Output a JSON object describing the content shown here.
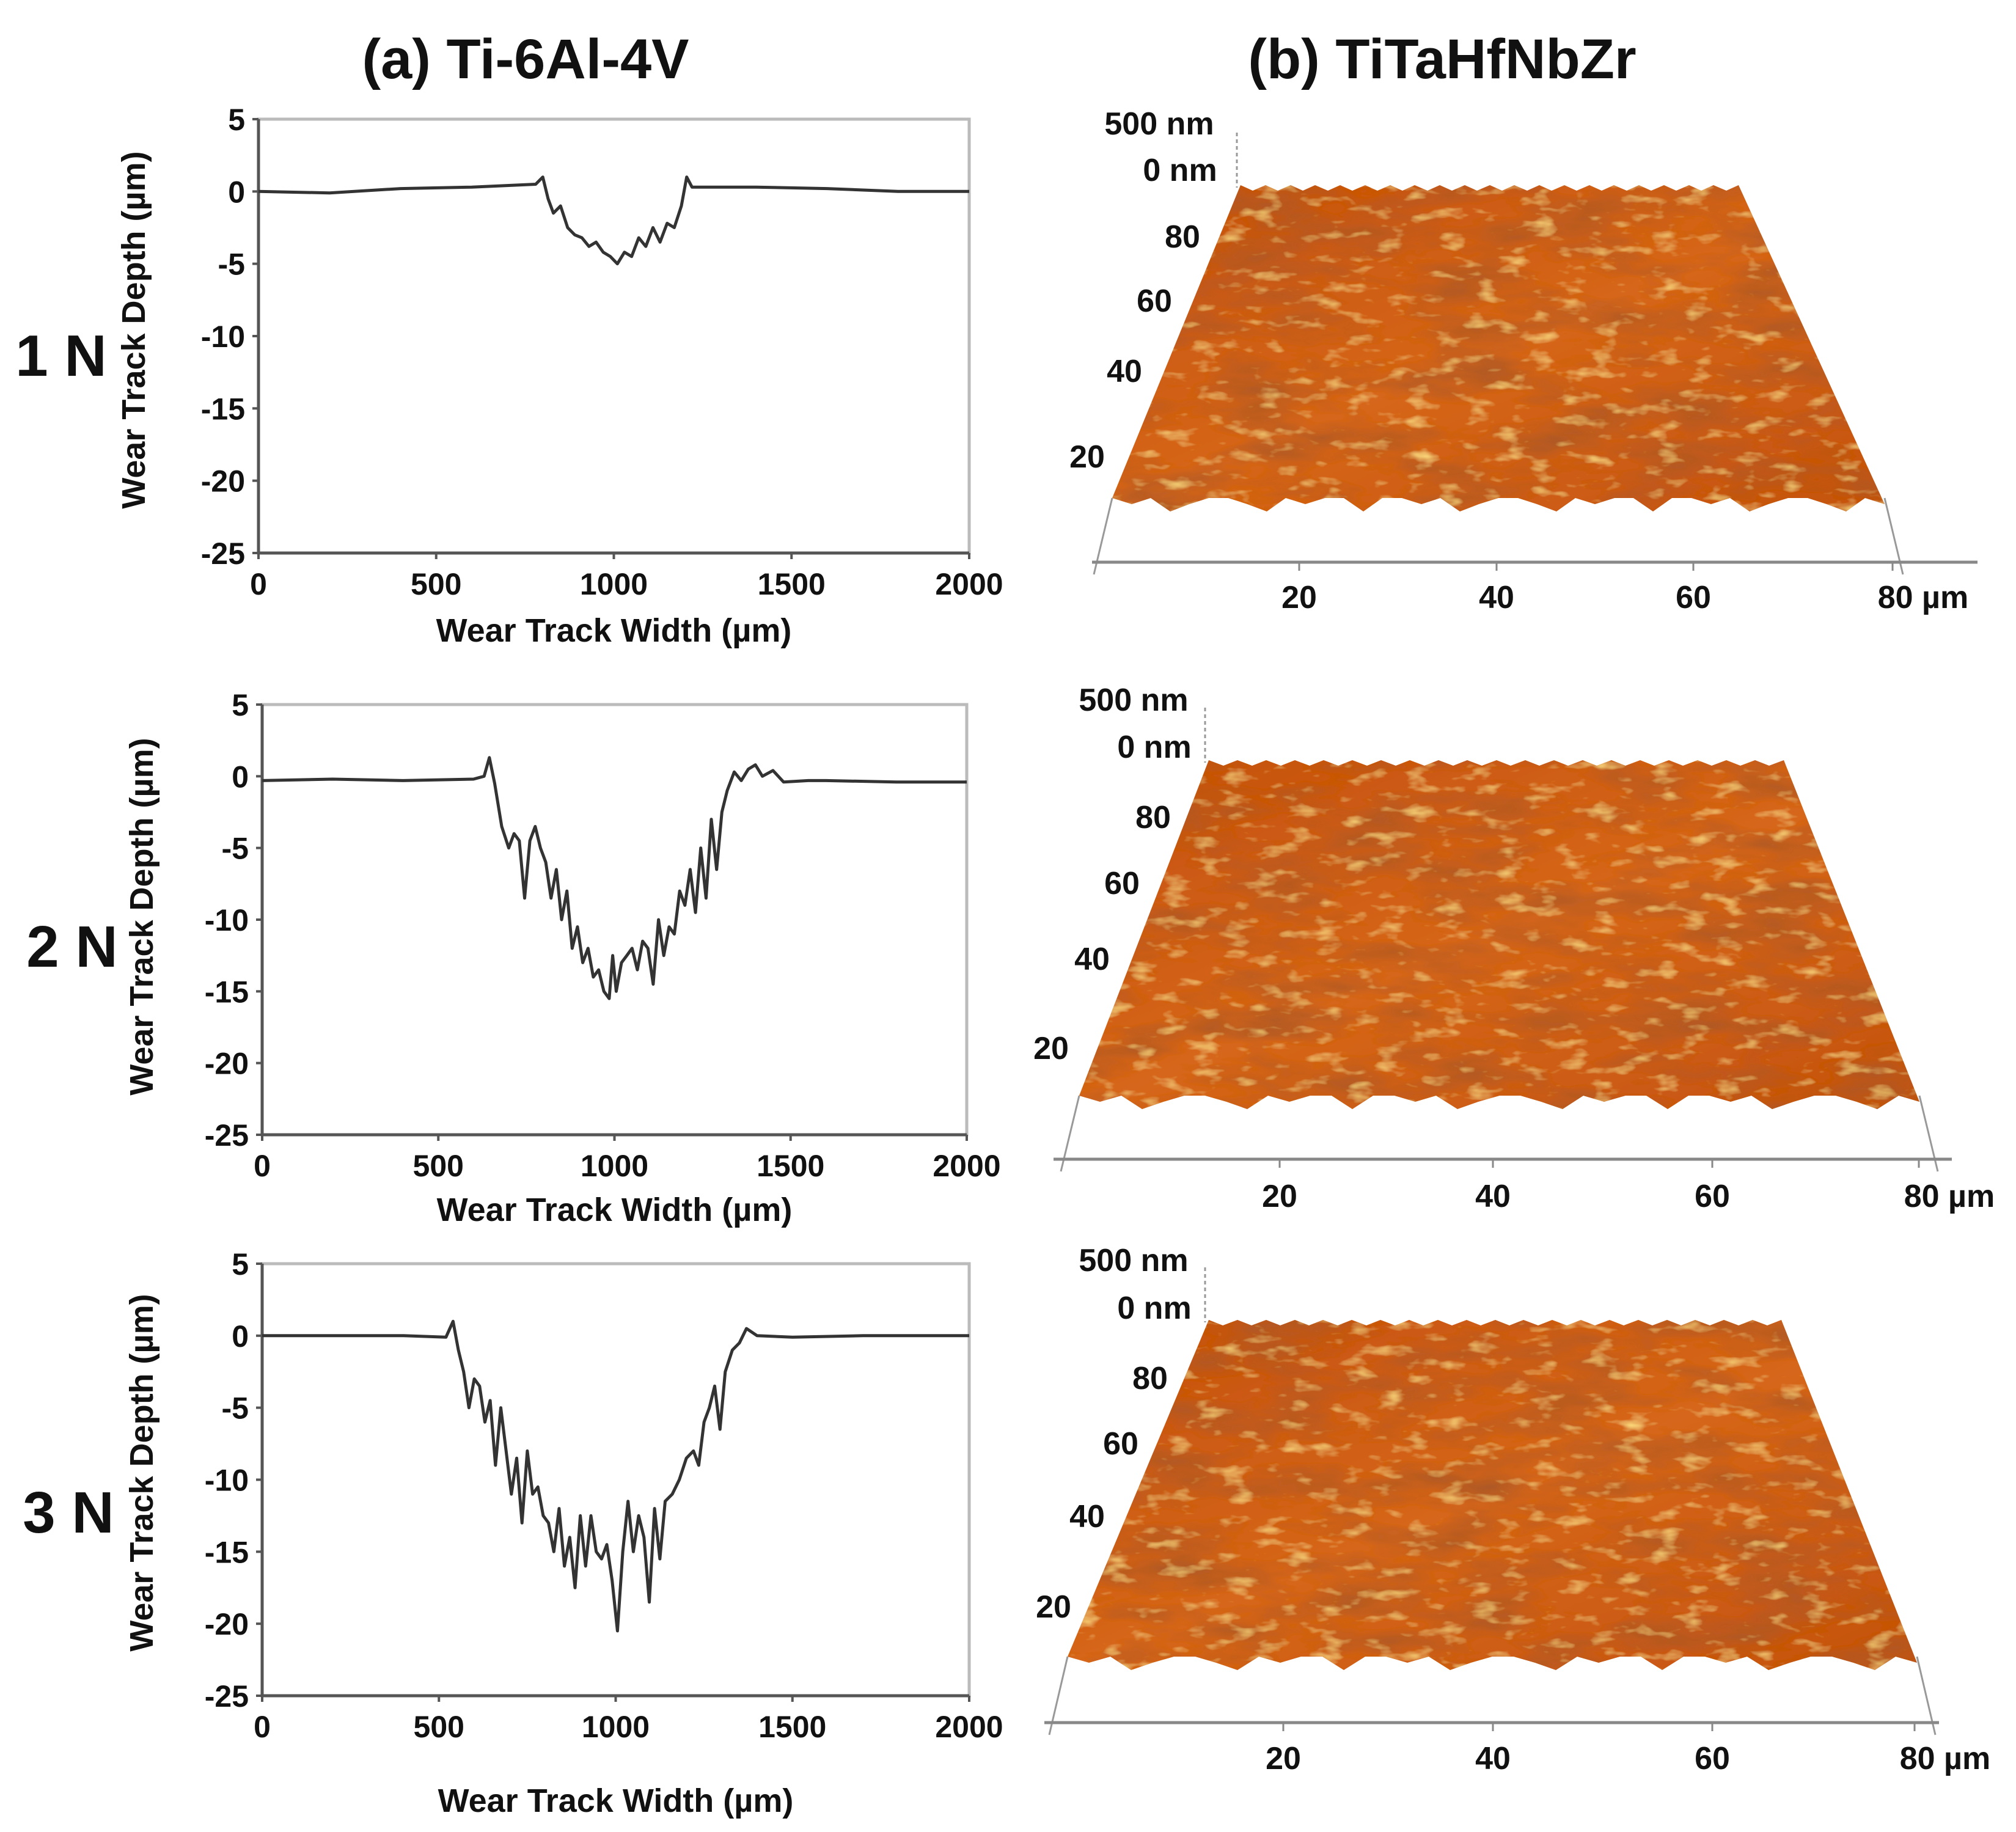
{
  "titles": {
    "a": "(a)  Ti-6Al-4V",
    "b": "(b)  TiTaHfNbZr"
  },
  "rows": [
    "1 N",
    "2 N",
    "3 N"
  ],
  "colors": {
    "line": "#333333",
    "frame": "#bbbbbb",
    "afm_base": "#c8560f",
    "afm_light": "#f0a02a",
    "afm_dark": "#6e1c04"
  },
  "chart_data": [
    {
      "type": "line",
      "load": "1 N",
      "title": "Ti-6Al-4V",
      "xlabel": "Wear Track Width (µm)",
      "ylabel": "Wear Track Depth (µm)",
      "xlim": [
        0,
        2000
      ],
      "ylim": [
        -25,
        5
      ],
      "xticks": [
        "0",
        "500",
        "1000",
        "1500",
        "2000"
      ],
      "yticks": [
        "5",
        "0",
        "-5",
        "-10",
        "-15",
        "-20",
        "-25"
      ],
      "points": [
        [
          0,
          0
        ],
        [
          200,
          -0.1
        ],
        [
          400,
          0.2
        ],
        [
          600,
          0.3
        ],
        [
          780,
          0.5
        ],
        [
          800,
          1.0
        ],
        [
          815,
          -0.5
        ],
        [
          830,
          -1.5
        ],
        [
          850,
          -1
        ],
        [
          870,
          -2.5
        ],
        [
          890,
          -3
        ],
        [
          910,
          -3.2
        ],
        [
          930,
          -3.8
        ],
        [
          950,
          -3.5
        ],
        [
          970,
          -4.2
        ],
        [
          990,
          -4.5
        ],
        [
          1010,
          -5
        ],
        [
          1030,
          -4.2
        ],
        [
          1050,
          -4.5
        ],
        [
          1070,
          -3.2
        ],
        [
          1090,
          -3.8
        ],
        [
          1110,
          -2.5
        ],
        [
          1130,
          -3.5
        ],
        [
          1150,
          -2.2
        ],
        [
          1170,
          -2.5
        ],
        [
          1190,
          -1
        ],
        [
          1205,
          1
        ],
        [
          1220,
          0.3
        ],
        [
          1400,
          0.3
        ],
        [
          1600,
          0.2
        ],
        [
          1800,
          0
        ],
        [
          2000,
          0
        ]
      ]
    },
    {
      "type": "line",
      "load": "2 N",
      "title": "Ti-6Al-4V",
      "xlabel": "Wear Track Width (µm)",
      "ylabel": "Wear Track Depth (µm)",
      "xlim": [
        0,
        2000
      ],
      "ylim": [
        -25,
        5
      ],
      "xticks": [
        "0",
        "500",
        "1000",
        "1500",
        "2000"
      ],
      "yticks": [
        "5",
        "0",
        "-5",
        "-10",
        "-15",
        "-20",
        "-25"
      ],
      "points": [
        [
          0,
          -0.3
        ],
        [
          200,
          -0.2
        ],
        [
          400,
          -0.3
        ],
        [
          600,
          -0.2
        ],
        [
          630,
          0
        ],
        [
          645,
          1.3
        ],
        [
          660,
          -0.5
        ],
        [
          680,
          -3.5
        ],
        [
          700,
          -5
        ],
        [
          715,
          -4
        ],
        [
          730,
          -4.5
        ],
        [
          745,
          -8.5
        ],
        [
          760,
          -4.5
        ],
        [
          775,
          -3.5
        ],
        [
          790,
          -5
        ],
        [
          805,
          -6
        ],
        [
          820,
          -8.5
        ],
        [
          835,
          -6.5
        ],
        [
          850,
          -10
        ],
        [
          865,
          -8
        ],
        [
          880,
          -12
        ],
        [
          895,
          -10.5
        ],
        [
          910,
          -13
        ],
        [
          925,
          -12
        ],
        [
          940,
          -14
        ],
        [
          955,
          -13.5
        ],
        [
          970,
          -15
        ],
        [
          985,
          -15.5
        ],
        [
          995,
          -12.5
        ],
        [
          1005,
          -15
        ],
        [
          1020,
          -13
        ],
        [
          1035,
          -12.5
        ],
        [
          1050,
          -12
        ],
        [
          1065,
          -13.5
        ],
        [
          1080,
          -11.5
        ],
        [
          1095,
          -12
        ],
        [
          1110,
          -14.5
        ],
        [
          1125,
          -10
        ],
        [
          1140,
          -12.5
        ],
        [
          1155,
          -10.5
        ],
        [
          1170,
          -11
        ],
        [
          1185,
          -8
        ],
        [
          1200,
          -9
        ],
        [
          1215,
          -6.5
        ],
        [
          1230,
          -9.5
        ],
        [
          1245,
          -5
        ],
        [
          1260,
          -8.5
        ],
        [
          1275,
          -3
        ],
        [
          1290,
          -6.5
        ],
        [
          1305,
          -2.5
        ],
        [
          1320,
          -1
        ],
        [
          1340,
          0.3
        ],
        [
          1360,
          -0.3
        ],
        [
          1380,
          0.5
        ],
        [
          1400,
          0.8
        ],
        [
          1420,
          0
        ],
        [
          1450,
          0.4
        ],
        [
          1480,
          -0.4
        ],
        [
          1550,
          -0.3
        ],
        [
          1600,
          -0.3
        ],
        [
          1800,
          -0.4
        ],
        [
          2000,
          -0.4
        ]
      ]
    },
    {
      "type": "line",
      "load": "3 N",
      "title": "Ti-6Al-4V",
      "xlabel": "Wear Track Width (µm)",
      "ylabel": "Wear Track Depth (µm)",
      "xlim": [
        0,
        2000
      ],
      "ylim": [
        -25,
        5
      ],
      "xticks": [
        "0",
        "500",
        "1000",
        "1500",
        "2000"
      ],
      "yticks": [
        "5",
        "0",
        "-5",
        "-10",
        "-15",
        "-20",
        "-25"
      ],
      "points": [
        [
          0,
          0
        ],
        [
          200,
          0
        ],
        [
          400,
          0
        ],
        [
          520,
          -0.1
        ],
        [
          540,
          1
        ],
        [
          555,
          -1
        ],
        [
          570,
          -2.5
        ],
        [
          585,
          -5
        ],
        [
          600,
          -3
        ],
        [
          615,
          -3.5
        ],
        [
          630,
          -6
        ],
        [
          645,
          -4.5
        ],
        [
          660,
          -9
        ],
        [
          675,
          -5
        ],
        [
          690,
          -8
        ],
        [
          705,
          -11
        ],
        [
          720,
          -8.5
        ],
        [
          735,
          -13
        ],
        [
          750,
          -8
        ],
        [
          765,
          -11
        ],
        [
          780,
          -10.5
        ],
        [
          795,
          -12.5
        ],
        [
          810,
          -13
        ],
        [
          825,
          -15
        ],
        [
          840,
          -12
        ],
        [
          855,
          -16
        ],
        [
          870,
          -14
        ],
        [
          885,
          -17.5
        ],
        [
          900,
          -12.5
        ],
        [
          915,
          -16
        ],
        [
          930,
          -12.5
        ],
        [
          945,
          -15
        ],
        [
          960,
          -15.5
        ],
        [
          975,
          -14.5
        ],
        [
          990,
          -17
        ],
        [
          1005,
          -20.5
        ],
        [
          1020,
          -15
        ],
        [
          1035,
          -11.5
        ],
        [
          1050,
          -15
        ],
        [
          1065,
          -12.5
        ],
        [
          1080,
          -14
        ],
        [
          1095,
          -18.5
        ],
        [
          1110,
          -12
        ],
        [
          1125,
          -15.5
        ],
        [
          1140,
          -11.5
        ],
        [
          1160,
          -11
        ],
        [
          1180,
          -10
        ],
        [
          1200,
          -8.5
        ],
        [
          1220,
          -8
        ],
        [
          1235,
          -9
        ],
        [
          1250,
          -6
        ],
        [
          1265,
          -5
        ],
        [
          1280,
          -3.5
        ],
        [
          1295,
          -6.5
        ],
        [
          1310,
          -2.5
        ],
        [
          1330,
          -1
        ],
        [
          1350,
          -0.5
        ],
        [
          1370,
          0.5
        ],
        [
          1400,
          0
        ],
        [
          1500,
          -0.1
        ],
        [
          1700,
          0
        ],
        [
          2000,
          0
        ]
      ]
    }
  ],
  "afm_panels": [
    {
      "load": "1 N",
      "z_labels": [
        "500 nm",
        "0 nm"
      ],
      "y_ticks": [
        "80",
        "60",
        "40",
        "20"
      ],
      "x_ticks": [
        "20",
        "40",
        "60",
        "80 µm"
      ]
    },
    {
      "load": "2 N",
      "z_labels": [
        "500 nm",
        "0 nm"
      ],
      "y_ticks": [
        "80",
        "60",
        "40",
        "20"
      ],
      "x_ticks": [
        "20",
        "40",
        "60",
        "80 µm"
      ]
    },
    {
      "load": "3 N",
      "z_labels": [
        "500 nm",
        "0 nm"
      ],
      "y_ticks": [
        "80",
        "60",
        "40",
        "20"
      ],
      "x_ticks": [
        "20",
        "40",
        "60",
        "80 µm"
      ]
    }
  ]
}
